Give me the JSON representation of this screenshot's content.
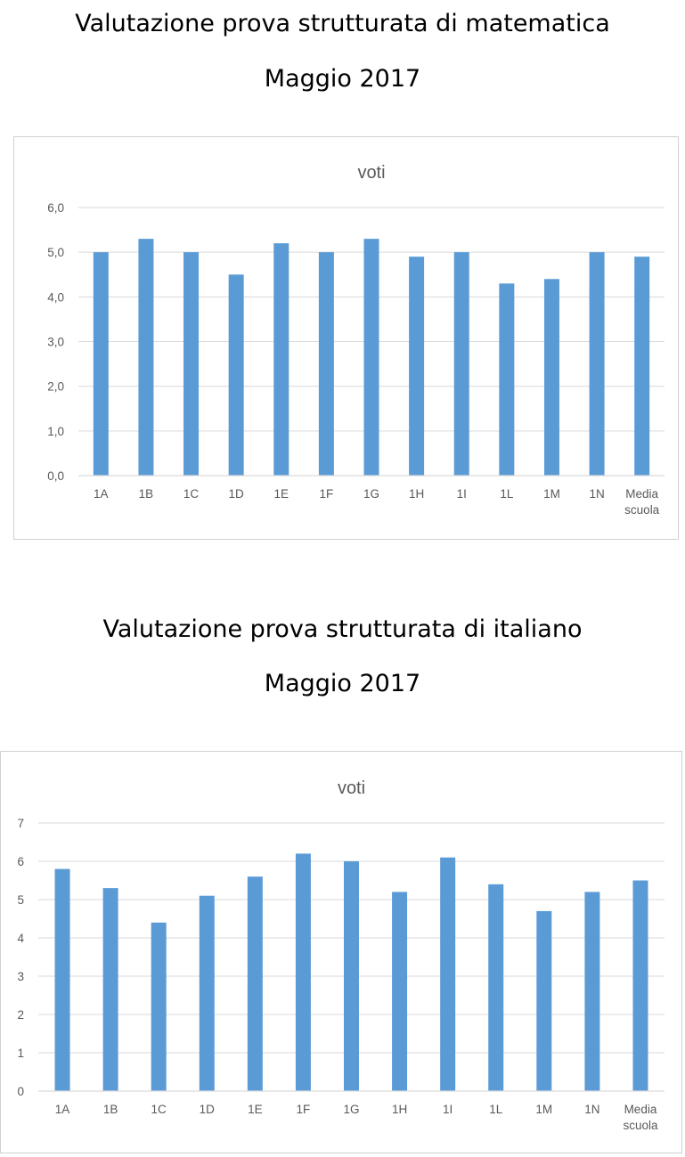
{
  "document": {
    "heading_math": "Valutazione prova strutturata di matematica",
    "date_math": "Maggio 2017",
    "heading_ita": "Valutazione prova strutturata di italiano",
    "date_ita": "Maggio 2017"
  },
  "colors": {
    "bar": "#5b9bd5",
    "grid": "#d9d9d9",
    "axis_text": "#595959",
    "title_text": "#595959"
  },
  "chart_data": [
    {
      "type": "bar",
      "title": "voti",
      "xlabel": "",
      "ylabel": "",
      "categories": [
        "1A",
        "1B",
        "1C",
        "1D",
        "1E",
        "1F",
        "1G",
        "1H",
        "1I",
        "1L",
        "1M",
        "1N",
        [
          "Media",
          "scuola"
        ]
      ],
      "values": [
        5.0,
        5.3,
        5.0,
        4.5,
        5.2,
        5.0,
        5.3,
        4.9,
        5.0,
        4.3,
        4.4,
        5.0,
        4.9
      ],
      "ylim": [
        0,
        6
      ],
      "yticks": [
        "0,0",
        "1,0",
        "2,0",
        "3,0",
        "4,0",
        "5,0",
        "6,0"
      ],
      "grid": true,
      "legend": "none"
    },
    {
      "type": "bar",
      "title": "voti",
      "xlabel": "",
      "ylabel": "",
      "categories": [
        "1A",
        "1B",
        "1C",
        "1D",
        "1E",
        "1F",
        "1G",
        "1H",
        "1I",
        "1L",
        "1M",
        "1N",
        [
          "Media",
          "scuola"
        ]
      ],
      "values": [
        5.8,
        5.3,
        4.4,
        5.1,
        5.6,
        6.2,
        6.0,
        5.2,
        6.1,
        5.4,
        4.7,
        5.2,
        5.5
      ],
      "ylim": [
        0,
        7
      ],
      "yticks": [
        "0",
        "1",
        "2",
        "3",
        "4",
        "5",
        "6",
        "7"
      ],
      "grid": true,
      "legend": "none"
    }
  ]
}
